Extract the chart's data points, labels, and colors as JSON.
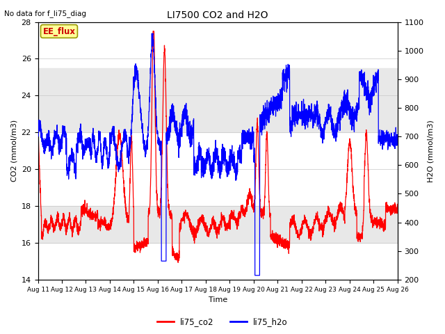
{
  "title": "LI7500 CO2 and H2O",
  "top_left_text": "No data for f_li75_diag",
  "annotation_box": "EE_flux",
  "xlabel": "Time",
  "ylabel_left": "CO2 (mmol/m3)",
  "ylabel_right": "H2O (mmol/m3)",
  "xlim": [
    0,
    15.0
  ],
  "ylim_left": [
    14,
    28
  ],
  "ylim_right": [
    200,
    1100
  ],
  "yticks_left": [
    14,
    16,
    18,
    20,
    22,
    24,
    26,
    28
  ],
  "yticks_right": [
    200,
    300,
    400,
    500,
    600,
    700,
    800,
    900,
    1000,
    1100
  ],
  "xtick_labels": [
    "Aug 11",
    "Aug 12",
    "Aug 13",
    "Aug 14",
    "Aug 15",
    "Aug 16",
    "Aug 17",
    "Aug 18",
    "Aug 19",
    "Aug 20",
    "Aug 21",
    "Aug 22",
    "Aug 23",
    "Aug 24",
    "Aug 25",
    "Aug 26"
  ],
  "xtick_positions": [
    0,
    1,
    2,
    3,
    4,
    5,
    6,
    7,
    8,
    9,
    10,
    11,
    12,
    13,
    14,
    15
  ],
  "band_lower": [
    16,
    18
  ],
  "band_upper": [
    22,
    25.5
  ],
  "band_color": "#e8e8e8",
  "co2_color": "#ff0000",
  "h2o_color": "#0000ff",
  "legend_labels": [
    "li75_co2",
    "li75_h2o"
  ],
  "bg_color": "#ffffff",
  "grid_color": "#c8c8c8",
  "annotation_box_facecolor": "#ffff99",
  "annotation_box_edgecolor": "#999900",
  "annotation_text_color": "#cc0000"
}
